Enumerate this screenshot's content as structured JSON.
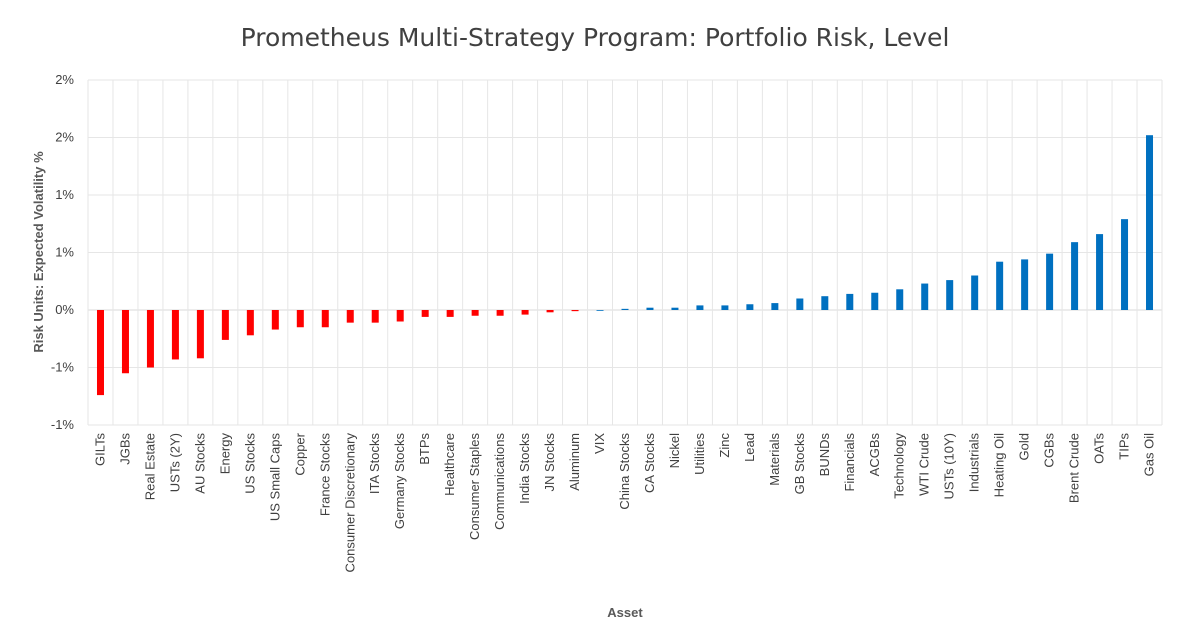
{
  "chart_data": {
    "type": "bar",
    "title": "Prometheus Multi-Strategy Program: Portfolio Risk, Level",
    "xlabel": "Asset",
    "ylabel": "Risk Units: Expected Volatility %",
    "ylim": [
      -1.0,
      2.0
    ],
    "yticks": [
      {
        "value": 2.0,
        "label": "2%"
      },
      {
        "value": 1.5,
        "label": "2%"
      },
      {
        "value": 1.0,
        "label": "1%"
      },
      {
        "value": 0.5,
        "label": "1%"
      },
      {
        "value": 0.0,
        "label": "0%"
      },
      {
        "value": -0.5,
        "label": "-1%"
      },
      {
        "value": -1.0,
        "label": "-1%"
      }
    ],
    "grid": true,
    "negative_color": "#ff0000",
    "positive_color": "#0070c0",
    "categories": [
      "GILTs",
      "JGBs",
      "Real Estate",
      "USTs (2Y)",
      "AU Stocks",
      "Energy",
      "US Stocks",
      "US Small Caps",
      "Copper",
      "France Stocks",
      "Consumer Discretionary",
      "ITA Stocks",
      "Germany Stocks",
      "BTPs",
      "Healthcare",
      "Consumer Staples",
      "Communications",
      "India Stocks",
      "JN Stocks",
      "Aluminum",
      "VIX",
      "China Stocks",
      "CA Stocks",
      "Nickel",
      "Utilities",
      "Zinc",
      "Lead",
      "Materials",
      "GB Stocks",
      "BUNDs",
      "Financials",
      "ACGBs",
      "Technology",
      "WTI Crude",
      "USTs (10Y)",
      "Industrials",
      "Heating Oil",
      "Gold",
      "CGBs",
      "Brent Crude",
      "OATs",
      "TIPs",
      "Gas Oil"
    ],
    "values": [
      -0.74,
      -0.55,
      -0.5,
      -0.43,
      -0.42,
      -0.26,
      -0.22,
      -0.17,
      -0.15,
      -0.15,
      -0.11,
      -0.11,
      -0.1,
      -0.06,
      -0.06,
      -0.05,
      -0.05,
      -0.04,
      -0.02,
      -0.01,
      0.0,
      0.01,
      0.02,
      0.02,
      0.04,
      0.04,
      0.05,
      0.06,
      0.1,
      0.12,
      0.14,
      0.15,
      0.18,
      0.23,
      0.26,
      0.3,
      0.42,
      0.44,
      0.49,
      0.59,
      0.66,
      0.79,
      1.52
    ]
  }
}
